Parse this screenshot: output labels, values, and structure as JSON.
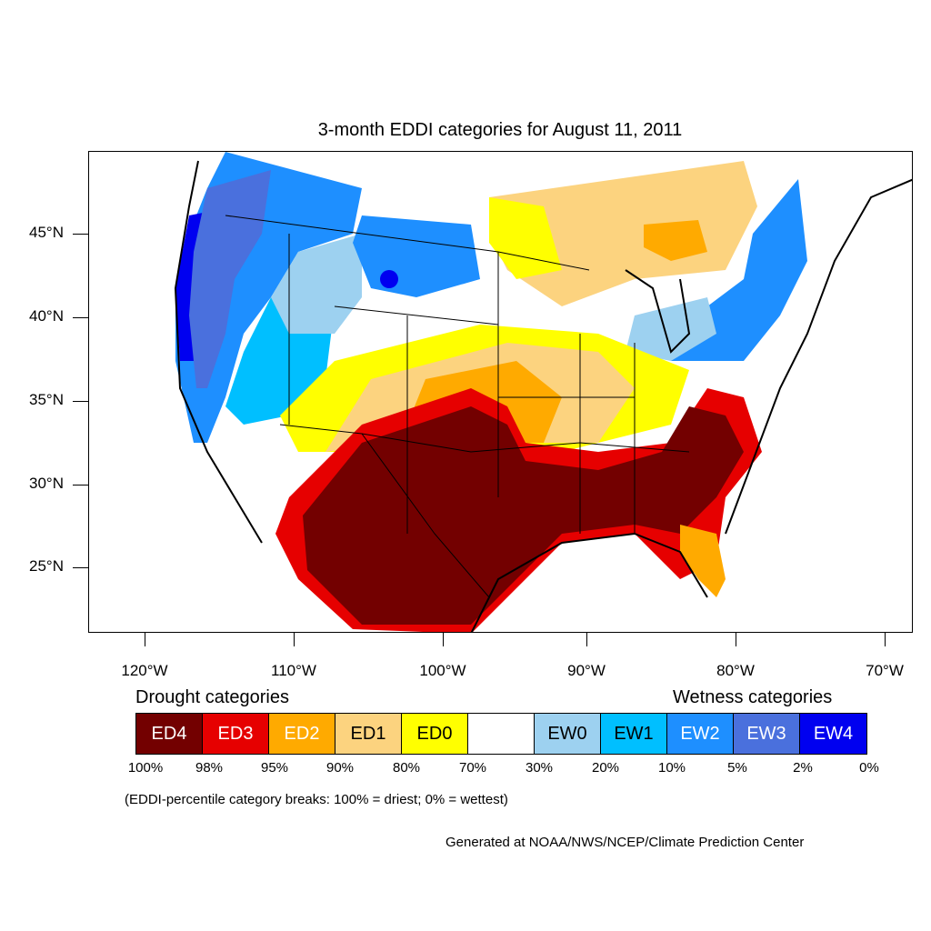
{
  "title": "3-month EDDI categories for August 11, 2011",
  "lat_labels": [
    "45°N",
    "40°N",
    "35°N",
    "30°N",
    "25°N"
  ],
  "lon_labels": [
    "120°W",
    "110°W",
    "100°W",
    "90°W",
    "80°W",
    "70°W"
  ],
  "legend": {
    "drought_heading": "Drought categories",
    "wetness_heading": "Wetness categories",
    "categories": [
      {
        "label": "ED4",
        "color": "#730000",
        "text_color": "#ffffff"
      },
      {
        "label": "ED3",
        "color": "#e60000",
        "text_color": "#ffffff"
      },
      {
        "label": "ED2",
        "color": "#ffaa00",
        "text_color": "#ffffff"
      },
      {
        "label": "ED1",
        "color": "#fcd37f",
        "text_color": "#000000"
      },
      {
        "label": "ED0",
        "color": "#ffff00",
        "text_color": "#000000"
      },
      {
        "label": "",
        "color": "#ffffff",
        "text_color": "#000000"
      },
      {
        "label": "EW0",
        "color": "#9dd1f0",
        "text_color": "#000000"
      },
      {
        "label": "EW1",
        "color": "#00bfff",
        "text_color": "#000000"
      },
      {
        "label": "EW2",
        "color": "#1e8fff",
        "text_color": "#ffffff"
      },
      {
        "label": "EW3",
        "color": "#4a70dd",
        "text_color": "#ffffff"
      },
      {
        "label": "EW4",
        "color": "#0000f0",
        "text_color": "#ffffff"
      }
    ],
    "breaks": [
      "100%",
      "98%",
      "95%",
      "90%",
      "80%",
      "70%",
      "30%",
      "20%",
      "10%",
      "5%",
      "2%",
      "0%"
    ]
  },
  "note": "(EDDI-percentile category breaks: 100% = driest; 0% = wettest)",
  "credit": "Generated at NOAA/NWS/NCEP/Climate Prediction Center"
}
